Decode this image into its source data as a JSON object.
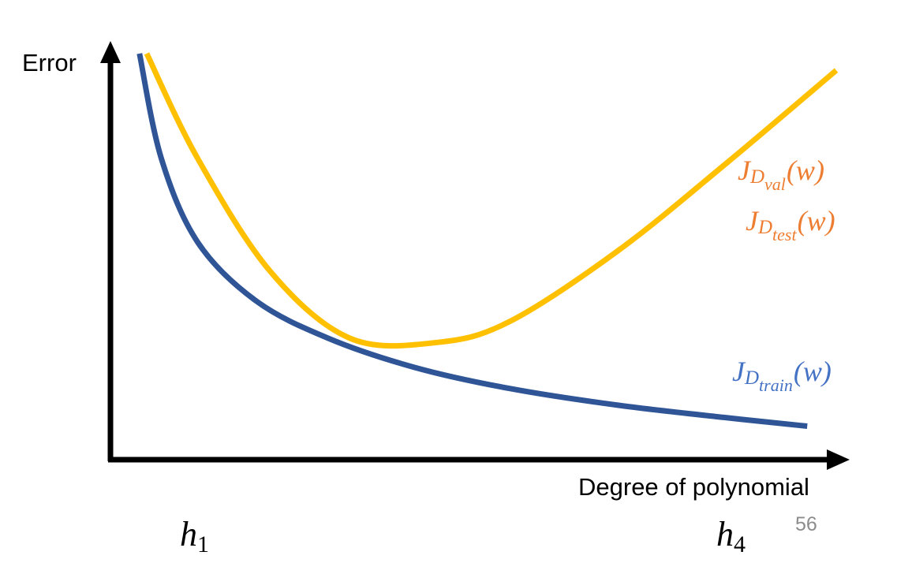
{
  "chart_data": {
    "type": "line",
    "title": "",
    "xlabel": "Degree of polynomial",
    "ylabel": "Error",
    "x_tick_labels": [
      {
        "base": "h",
        "sub": "1"
      },
      {
        "base": "h",
        "sub": "4"
      }
    ],
    "grid": false,
    "legend": "none",
    "series": [
      {
        "name_parts": {
          "base": "J",
          "sub1": "D",
          "sub2": "val",
          "arg": "(w)"
        },
        "name_parts_2": {
          "base": "J",
          "sub1": "D",
          "sub2": "test",
          "arg": "(w)"
        },
        "color": "#ffc000",
        "values": [
          [
            0.05,
            0.97
          ],
          [
            0.12,
            0.72
          ],
          [
            0.22,
            0.45
          ],
          [
            0.33,
            0.29
          ],
          [
            0.45,
            0.28
          ],
          [
            0.55,
            0.33
          ],
          [
            0.7,
            0.5
          ],
          [
            0.85,
            0.71
          ],
          [
            1.0,
            0.93
          ]
        ]
      },
      {
        "name_parts": {
          "base": "J",
          "sub1": "D",
          "sub2": "train",
          "arg": "(w)"
        },
        "color": "#2f5597",
        "values": [
          [
            0.04,
            0.97
          ],
          [
            0.07,
            0.72
          ],
          [
            0.12,
            0.52
          ],
          [
            0.2,
            0.38
          ],
          [
            0.3,
            0.29
          ],
          [
            0.42,
            0.22
          ],
          [
            0.55,
            0.17
          ],
          [
            0.7,
            0.13
          ],
          [
            0.85,
            0.1
          ],
          [
            0.96,
            0.08
          ]
        ]
      }
    ],
    "label_colors": {
      "val_test": "#ed7d31",
      "train": "#4472c4"
    }
  },
  "slide": {
    "page_number": "56"
  }
}
